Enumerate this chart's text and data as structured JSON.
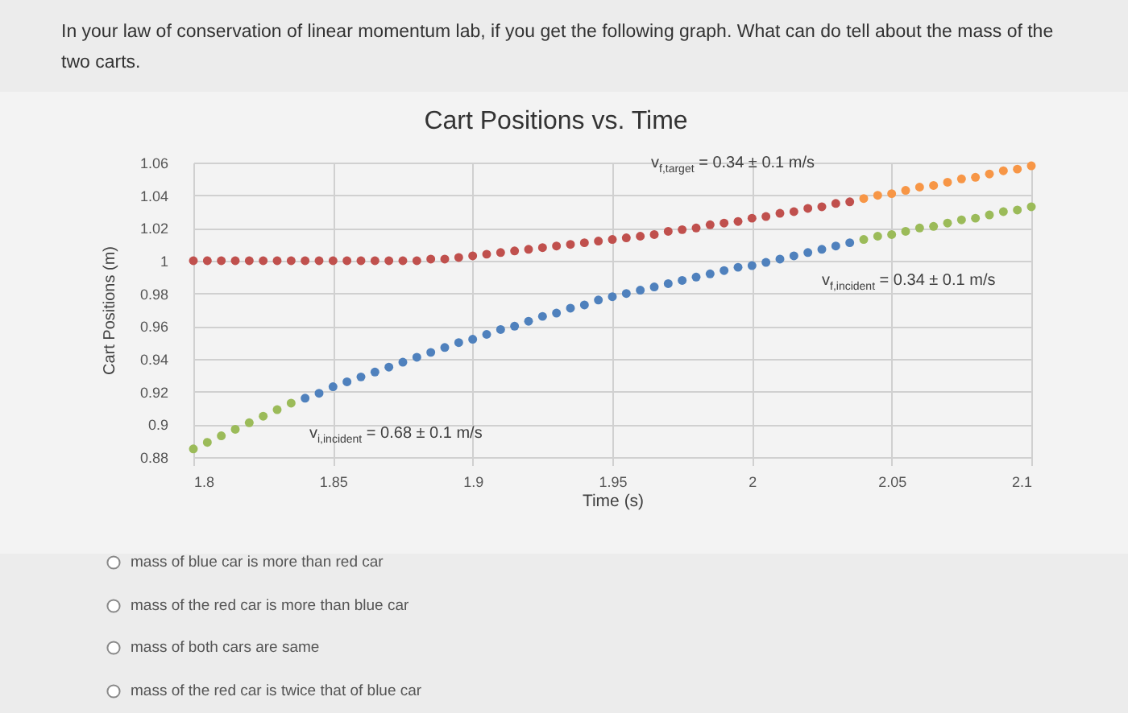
{
  "chart_data": {
    "type": "scatter",
    "title": "Cart Positions vs. Time",
    "xlabel": "Time (s)",
    "ylabel": "Cart Positions (m)",
    "xlim": [
      1.8,
      2.1
    ],
    "xticks": [
      1.8,
      1.85,
      1.9,
      1.95,
      2,
      2.05,
      2.1
    ],
    "ylim": [
      0.88,
      1.06
    ],
    "yticks": [
      0.88,
      0.9,
      0.92,
      0.94,
      0.96,
      0.98,
      1,
      1.02,
      1.04,
      1.06
    ],
    "grid": true,
    "legend": false,
    "marker": "circle",
    "series": [
      {
        "color": "#9bbb59",
        "x": [
          1.8,
          1.805,
          1.81,
          1.815,
          1.82,
          1.825,
          1.83,
          1.835
        ],
        "values": [
          0.885,
          0.889,
          0.893,
          0.897,
          0.901,
          0.905,
          0.909,
          0.913
        ]
      },
      {
        "color": "#4f81bd",
        "x": [
          1.84,
          1.845,
          1.85,
          1.855,
          1.86,
          1.865,
          1.87,
          1.875,
          1.88,
          1.885,
          1.89,
          1.895,
          1.9,
          1.905,
          1.91,
          1.915,
          1.92,
          1.925,
          1.93,
          1.935,
          1.94,
          1.945,
          1.95,
          1.955,
          1.96,
          1.965,
          1.97,
          1.975,
          1.98,
          1.985,
          1.99,
          1.995,
          2,
          2.005,
          2.01,
          2.015,
          2.02,
          2.025,
          2.03,
          2.035
        ],
        "values": [
          0.916,
          0.919,
          0.923,
          0.926,
          0.929,
          0.932,
          0.935,
          0.938,
          0.941,
          0.944,
          0.947,
          0.95,
          0.952,
          0.955,
          0.958,
          0.96,
          0.963,
          0.966,
          0.968,
          0.971,
          0.973,
          0.976,
          0.978,
          0.98,
          0.982,
          0.984,
          0.986,
          0.988,
          0.99,
          0.992,
          0.994,
          0.996,
          0.997,
          0.999,
          1.001,
          1.003,
          1.005,
          1.007,
          1.009,
          1.011
        ]
      },
      {
        "color": "#c0504d",
        "x": [
          1.8,
          1.805,
          1.81,
          1.815,
          1.82,
          1.825,
          1.83,
          1.835,
          1.84,
          1.845,
          1.85,
          1.855,
          1.86,
          1.865,
          1.87,
          1.875,
          1.88,
          1.885,
          1.89,
          1.895,
          1.9,
          1.905,
          1.91,
          1.915,
          1.92,
          1.925,
          1.93,
          1.935,
          1.94,
          1.945,
          1.95,
          1.955,
          1.96,
          1.965,
          1.97,
          1.975,
          1.98,
          1.985,
          1.99,
          1.995,
          2,
          2.005,
          2.01,
          2.015,
          2.02,
          2.025,
          2.03,
          2.035
        ],
        "values": [
          1,
          1,
          1,
          1,
          1,
          1,
          1,
          1,
          1,
          1,
          1,
          1,
          1,
          1,
          1,
          1,
          1,
          1.001,
          1.001,
          1.002,
          1.003,
          1.004,
          1.005,
          1.006,
          1.007,
          1.008,
          1.009,
          1.01,
          1.011,
          1.012,
          1.013,
          1.014,
          1.015,
          1.016,
          1.018,
          1.019,
          1.02,
          1.022,
          1.023,
          1.024,
          1.026,
          1.027,
          1.029,
          1.03,
          1.032,
          1.033,
          1.035,
          1.036
        ]
      },
      {
        "color": "#f79646",
        "x": [
          2.04,
          2.045,
          2.05,
          2.055,
          2.06,
          2.065,
          2.07,
          2.075,
          2.08,
          2.085,
          2.09,
          2.095,
          2.1
        ],
        "values": [
          1.038,
          1.04,
          1.041,
          1.043,
          1.045,
          1.046,
          1.048,
          1.05,
          1.051,
          1.053,
          1.055,
          1.056,
          1.058
        ]
      },
      {
        "color": "#9bbb59",
        "x": [
          2.04,
          2.045,
          2.05,
          2.055,
          2.06,
          2.065,
          2.07,
          2.075,
          2.08,
          2.085,
          2.09,
          2.095,
          2.1
        ],
        "values": [
          1.013,
          1.015,
          1.016,
          1.018,
          1.02,
          1.021,
          1.023,
          1.025,
          1.026,
          1.028,
          1.03,
          1.031,
          1.033
        ]
      }
    ],
    "annotations": [
      "In your law of conservation of linear momentum lab, if you get the following graph. What can do tell about the mass of the two carts.",
      "v$_{i,incident}$ = 0.68 ± 0.1 m/s",
      "v$_{f,target}$ = 0.34 ± 0.1 m/s",
      "v$_{f,incident}$ = 0.34 ± 0.1 m/s",
      "mass of blue car is more than red car",
      "mass of the red car is more than blue car",
      "mass of both cars are same",
      "mass of the red car is twice that of blue car"
    ]
  }
}
